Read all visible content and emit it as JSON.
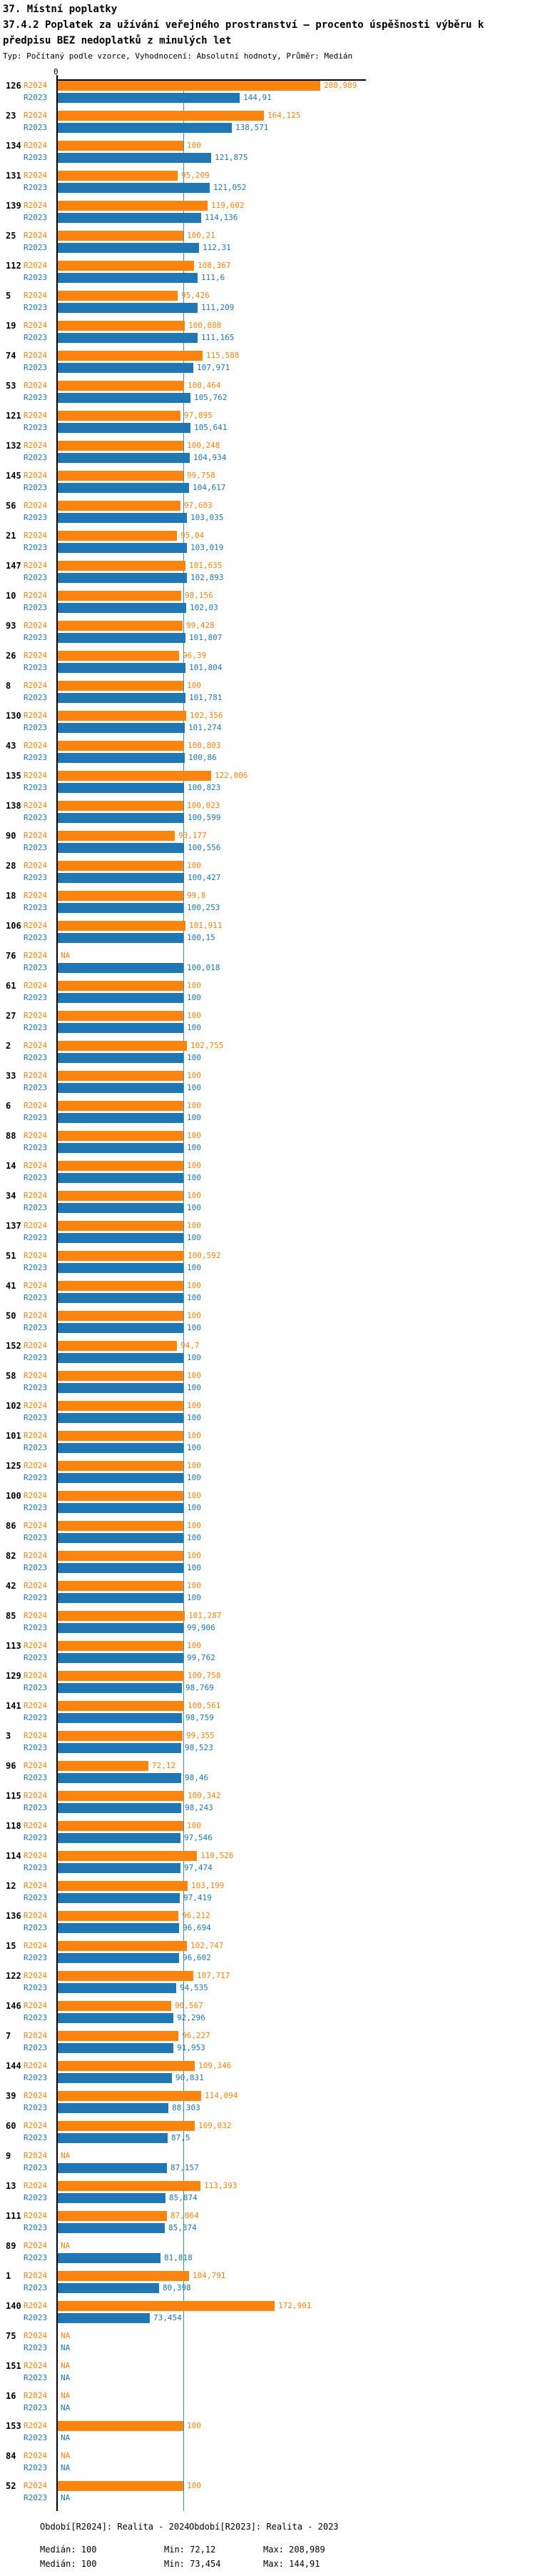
{
  "title": "37. Místní poplatky",
  "subtitle": "37.4.2 Poplatek za užívání veřejného prostranství – procento úspěšnosti výběru k předpisu BEZ nedoplatků z minulých let",
  "meta": "Typ: Počítaný podle vzorce, Vyhodnocení: Absolutní hodnoty, Průměr: Medián",
  "axis": {
    "zero_label": "0"
  },
  "colors": {
    "r2024": "#fb8310",
    "r2023": "#2077b4",
    "median_line": "#2e96c0",
    "axis": "#000000"
  },
  "series_labels": {
    "r2024": "R2024",
    "r2023": "R2023"
  },
  "legend": {
    "r2024": "Období[R2024]: Realita - 2024",
    "r2023": "Období[R2023]: Realita - 2023"
  },
  "stats": {
    "r2024": {
      "median": "Medián: 100",
      "min": "Min: 72,12",
      "max": "Max: 208,989"
    },
    "r2023": {
      "median": "Medián: 100",
      "min": "Min: 73,454",
      "max": "Max: 144,91"
    }
  },
  "chart_data": {
    "type": "bar",
    "orientation": "horizontal",
    "title": "37.4.2 Poplatek za užívání veřejného prostranství – procento úspěšnosti výběru k předpisu BEZ nedoplatků z minulých let",
    "xlim": [
      0,
      245
    ],
    "median_reference": 100,
    "legend_position": "bottom",
    "grid": false,
    "series_names": [
      "R2024",
      "R2023"
    ],
    "rows": [
      {
        "id": "126",
        "r2024": 208.989,
        "r2024_label": "208,989",
        "r2023": 144.91,
        "r2023_label": "144,91"
      },
      {
        "id": "23",
        "r2024": 164.125,
        "r2024_label": "164,125",
        "r2023": 138.571,
        "r2023_label": "138,571"
      },
      {
        "id": "134",
        "r2024": 100,
        "r2024_label": "100",
        "r2023": 121.875,
        "r2023_label": "121,875"
      },
      {
        "id": "131",
        "r2024": 95.209,
        "r2024_label": "95,209",
        "r2023": 121.052,
        "r2023_label": "121,052"
      },
      {
        "id": "139",
        "r2024": 119.602,
        "r2024_label": "119,602",
        "r2023": 114.136,
        "r2023_label": "114,136"
      },
      {
        "id": "25",
        "r2024": 100.21,
        "r2024_label": "100,21",
        "r2023": 112.31,
        "r2023_label": "112,31"
      },
      {
        "id": "112",
        "r2024": 108.367,
        "r2024_label": "108,367",
        "r2023": 111.6,
        "r2023_label": "111,6"
      },
      {
        "id": "5",
        "r2024": 95.426,
        "r2024_label": "95,426",
        "r2023": 111.209,
        "r2023_label": "111,209"
      },
      {
        "id": "19",
        "r2024": 100.888,
        "r2024_label": "100,888",
        "r2023": 111.165,
        "r2023_label": "111,165"
      },
      {
        "id": "74",
        "r2024": 115.588,
        "r2024_label": "115,588",
        "r2023": 107.971,
        "r2023_label": "107,971"
      },
      {
        "id": "53",
        "r2024": 100.464,
        "r2024_label": "100,464",
        "r2023": 105.762,
        "r2023_label": "105,762"
      },
      {
        "id": "121",
        "r2024": 97.895,
        "r2024_label": "97,895",
        "r2023": 105.641,
        "r2023_label": "105,641"
      },
      {
        "id": "132",
        "r2024": 100.248,
        "r2024_label": "100,248",
        "r2023": 104.934,
        "r2023_label": "104,934"
      },
      {
        "id": "145",
        "r2024": 99.758,
        "r2024_label": "99,758",
        "r2023": 104.617,
        "r2023_label": "104,617"
      },
      {
        "id": "56",
        "r2024": 97.603,
        "r2024_label": "97,603",
        "r2023": 103.035,
        "r2023_label": "103,035"
      },
      {
        "id": "21",
        "r2024": 95.04,
        "r2024_label": "95,04",
        "r2023": 103.019,
        "r2023_label": "103,019"
      },
      {
        "id": "147",
        "r2024": 101.635,
        "r2024_label": "101,635",
        "r2023": 102.893,
        "r2023_label": "102,893"
      },
      {
        "id": "10",
        "r2024": 98.156,
        "r2024_label": "98,156",
        "r2023": 102.03,
        "r2023_label": "102,03"
      },
      {
        "id": "93",
        "r2024": 99.428,
        "r2024_label": "99,428",
        "r2023": 101.807,
        "r2023_label": "101,807"
      },
      {
        "id": "26",
        "r2024": 96.39,
        "r2024_label": "96,39",
        "r2023": 101.804,
        "r2023_label": "101,804"
      },
      {
        "id": "8",
        "r2024": 100,
        "r2024_label": "100",
        "r2023": 101.781,
        "r2023_label": "101,781"
      },
      {
        "id": "130",
        "r2024": 102.356,
        "r2024_label": "102,356",
        "r2023": 101.274,
        "r2023_label": "101,274"
      },
      {
        "id": "43",
        "r2024": 100.803,
        "r2024_label": "100,803",
        "r2023": 100.86,
        "r2023_label": "100,86"
      },
      {
        "id": "135",
        "r2024": 122.006,
        "r2024_label": "122,006",
        "r2023": 100.823,
        "r2023_label": "100,823"
      },
      {
        "id": "138",
        "r2024": 100.023,
        "r2024_label": "100,023",
        "r2023": 100.599,
        "r2023_label": "100,599"
      },
      {
        "id": "90",
        "r2024": 93.177,
        "r2024_label": "93,177",
        "r2023": 100.556,
        "r2023_label": "100,556"
      },
      {
        "id": "28",
        "r2024": 100,
        "r2024_label": "100",
        "r2023": 100.427,
        "r2023_label": "100,427"
      },
      {
        "id": "18",
        "r2024": 99.8,
        "r2024_label": "99,8",
        "r2023": 100.253,
        "r2023_label": "100,253"
      },
      {
        "id": "106",
        "r2024": 101.911,
        "r2024_label": "101,911",
        "r2023": 100.15,
        "r2023_label": "100,15"
      },
      {
        "id": "76",
        "r2024": null,
        "r2024_label": "NA",
        "r2023": 100.018,
        "r2023_label": "100,018"
      },
      {
        "id": "61",
        "r2024": 100,
        "r2024_label": "100",
        "r2023": 100,
        "r2023_label": "100"
      },
      {
        "id": "27",
        "r2024": 100,
        "r2024_label": "100",
        "r2023": 100,
        "r2023_label": "100"
      },
      {
        "id": "2",
        "r2024": 102.755,
        "r2024_label": "102,755",
        "r2023": 100,
        "r2023_label": "100"
      },
      {
        "id": "33",
        "r2024": 100,
        "r2024_label": "100",
        "r2023": 100,
        "r2023_label": "100"
      },
      {
        "id": "6",
        "r2024": 100,
        "r2024_label": "100",
        "r2023": 100,
        "r2023_label": "100"
      },
      {
        "id": "88",
        "r2024": 100,
        "r2024_label": "100",
        "r2023": 100,
        "r2023_label": "100"
      },
      {
        "id": "14",
        "r2024": 100,
        "r2024_label": "100",
        "r2023": 100,
        "r2023_label": "100"
      },
      {
        "id": "34",
        "r2024": 100,
        "r2024_label": "100",
        "r2023": 100,
        "r2023_label": "100"
      },
      {
        "id": "137",
        "r2024": 100,
        "r2024_label": "100",
        "r2023": 100,
        "r2023_label": "100"
      },
      {
        "id": "51",
        "r2024": 100.592,
        "r2024_label": "100,592",
        "r2023": 100,
        "r2023_label": "100"
      },
      {
        "id": "41",
        "r2024": 100,
        "r2024_label": "100",
        "r2023": 100,
        "r2023_label": "100"
      },
      {
        "id": "50",
        "r2024": 100,
        "r2024_label": "100",
        "r2023": 100,
        "r2023_label": "100"
      },
      {
        "id": "152",
        "r2024": 94.7,
        "r2024_label": "94,7",
        "r2023": 100,
        "r2023_label": "100"
      },
      {
        "id": "58",
        "r2024": 100,
        "r2024_label": "100",
        "r2023": 100,
        "r2023_label": "100"
      },
      {
        "id": "102",
        "r2024": 100,
        "r2024_label": "100",
        "r2023": 100,
        "r2023_label": "100"
      },
      {
        "id": "101",
        "r2024": 100,
        "r2024_label": "100",
        "r2023": 100,
        "r2023_label": "100"
      },
      {
        "id": "125",
        "r2024": 100,
        "r2024_label": "100",
        "r2023": 100,
        "r2023_label": "100"
      },
      {
        "id": "100",
        "r2024": 100,
        "r2024_label": "100",
        "r2023": 100,
        "r2023_label": "100"
      },
      {
        "id": "86",
        "r2024": 100,
        "r2024_label": "100",
        "r2023": 100,
        "r2023_label": "100"
      },
      {
        "id": "82",
        "r2024": 100,
        "r2024_label": "100",
        "r2023": 100,
        "r2023_label": "100"
      },
      {
        "id": "42",
        "r2024": 100,
        "r2024_label": "100",
        "r2023": 100,
        "r2023_label": "100"
      },
      {
        "id": "85",
        "r2024": 101.287,
        "r2024_label": "101,287",
        "r2023": 99.906,
        "r2023_label": "99,906"
      },
      {
        "id": "113",
        "r2024": 100,
        "r2024_label": "100",
        "r2023": 99.762,
        "r2023_label": "99,762"
      },
      {
        "id": "129",
        "r2024": 100.758,
        "r2024_label": "100,758",
        "r2023": 98.769,
        "r2023_label": "98,769"
      },
      {
        "id": "141",
        "r2024": 100.561,
        "r2024_label": "100,561",
        "r2023": 98.759,
        "r2023_label": "98,759"
      },
      {
        "id": "3",
        "r2024": 99.355,
        "r2024_label": "99,355",
        "r2023": 98.523,
        "r2023_label": "98,523"
      },
      {
        "id": "96",
        "r2024": 72.12,
        "r2024_label": "72,12",
        "r2023": 98.46,
        "r2023_label": "98,46"
      },
      {
        "id": "115",
        "r2024": 100.342,
        "r2024_label": "100,342",
        "r2023": 98.243,
        "r2023_label": "98,243"
      },
      {
        "id": "118",
        "r2024": 100,
        "r2024_label": "100",
        "r2023": 97.546,
        "r2023_label": "97,546"
      },
      {
        "id": "114",
        "r2024": 110.526,
        "r2024_label": "110,526",
        "r2023": 97.474,
        "r2023_label": "97,474"
      },
      {
        "id": "12",
        "r2024": 103.199,
        "r2024_label": "103,199",
        "r2023": 97.419,
        "r2023_label": "97,419"
      },
      {
        "id": "136",
        "r2024": 96.212,
        "r2024_label": "96,212",
        "r2023": 96.694,
        "r2023_label": "96,694"
      },
      {
        "id": "15",
        "r2024": 102.747,
        "r2024_label": "102,747",
        "r2023": 96.602,
        "r2023_label": "96,602"
      },
      {
        "id": "122",
        "r2024": 107.717,
        "r2024_label": "107,717",
        "r2023": 94.535,
        "r2023_label": "94,535"
      },
      {
        "id": "146",
        "r2024": 90.567,
        "r2024_label": "90,567",
        "r2023": 92.296,
        "r2023_label": "92,296"
      },
      {
        "id": "7",
        "r2024": 96.227,
        "r2024_label": "96,227",
        "r2023": 91.953,
        "r2023_label": "91,953"
      },
      {
        "id": "144",
        "r2024": 109.346,
        "r2024_label": "109,346",
        "r2023": 90.831,
        "r2023_label": "90,831"
      },
      {
        "id": "39",
        "r2024": 114.094,
        "r2024_label": "114,094",
        "r2023": 88.303,
        "r2023_label": "88,303"
      },
      {
        "id": "60",
        "r2024": 109.032,
        "r2024_label": "109,032",
        "r2023": 87.5,
        "r2023_label": "87,5"
      },
      {
        "id": "9",
        "r2024": null,
        "r2024_label": "NA",
        "r2023": 87.157,
        "r2023_label": "87,157"
      },
      {
        "id": "13",
        "r2024": 113.393,
        "r2024_label": "113,393",
        "r2023": 85.874,
        "r2023_label": "85,874"
      },
      {
        "id": "111",
        "r2024": 87.064,
        "r2024_label": "87,064",
        "r2023": 85.374,
        "r2023_label": "85,374"
      },
      {
        "id": "89",
        "r2024": null,
        "r2024_label": "NA",
        "r2023": 81.818,
        "r2023_label": "81,818"
      },
      {
        "id": "1",
        "r2024": 104.791,
        "r2024_label": "104,791",
        "r2023": 80.398,
        "r2023_label": "80,398"
      },
      {
        "id": "140",
        "r2024": 172.901,
        "r2024_label": "172,901",
        "r2023": 73.454,
        "r2023_label": "73,454"
      },
      {
        "id": "75",
        "r2024": null,
        "r2024_label": "NA",
        "r2023": null,
        "r2023_label": "NA"
      },
      {
        "id": "151",
        "r2024": null,
        "r2024_label": "NA",
        "r2023": null,
        "r2023_label": "NA"
      },
      {
        "id": "16",
        "r2024": null,
        "r2024_label": "NA",
        "r2023": null,
        "r2023_label": "NA"
      },
      {
        "id": "153",
        "r2024": 100,
        "r2024_label": "100",
        "r2023": null,
        "r2023_label": "NA"
      },
      {
        "id": "84",
        "r2024": null,
        "r2024_label": "NA",
        "r2023": null,
        "r2023_label": "NA"
      },
      {
        "id": "52",
        "r2024": 100,
        "r2024_label": "100",
        "r2023": null,
        "r2023_label": "NA"
      }
    ]
  }
}
